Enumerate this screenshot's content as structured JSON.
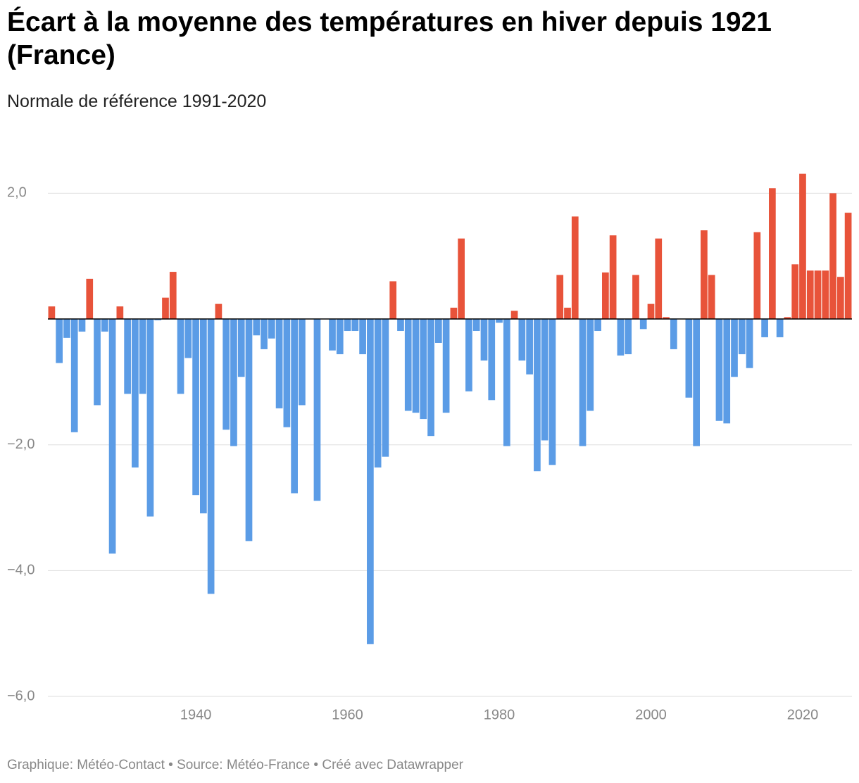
{
  "chart_data": {
    "type": "bar",
    "title": "Écart à la moyenne des températures en hiver depuis 1921 (France)",
    "subtitle": "Normale de référence 1991-2020",
    "source": "Graphique: Météo-Contact • Source: Météo-France • Créé avec Datawrapper",
    "x": [
      1921,
      1922,
      1923,
      1924,
      1925,
      1926,
      1927,
      1928,
      1929,
      1930,
      1931,
      1932,
      1933,
      1934,
      1935,
      1936,
      1937,
      1938,
      1939,
      1940,
      1941,
      1942,
      1943,
      1944,
      1945,
      1946,
      1947,
      1948,
      1949,
      1950,
      1951,
      1952,
      1953,
      1954,
      1955,
      1956,
      1957,
      1958,
      1959,
      1960,
      1961,
      1962,
      1963,
      1964,
      1965,
      1966,
      1967,
      1968,
      1969,
      1970,
      1971,
      1972,
      1973,
      1974,
      1975,
      1976,
      1977,
      1978,
      1979,
      1980,
      1981,
      1982,
      1983,
      1984,
      1985,
      1986,
      1987,
      1988,
      1989,
      1990,
      1991,
      1992,
      1993,
      1994,
      1995,
      1996,
      1997,
      1998,
      1999,
      2000,
      2001,
      2002,
      2003,
      2004,
      2005,
      2006,
      2007,
      2008,
      2009,
      2010,
      2011,
      2012,
      2013,
      2014,
      2015,
      2016,
      2017,
      2018,
      2019,
      2020,
      2021,
      2022,
      2023,
      2024,
      2025,
      2026
    ],
    "values": [
      0.2,
      -0.7,
      -0.3,
      -1.8,
      -0.2,
      0.64,
      -1.37,
      -0.2,
      -3.73,
      0.2,
      -1.19,
      -2.36,
      -1.19,
      -3.14,
      -0.02,
      0.34,
      0.75,
      -1.19,
      -0.62,
      -2.8,
      -3.09,
      -4.37,
      0.24,
      -1.76,
      -2.02,
      -0.92,
      -3.53,
      -0.26,
      -0.48,
      -0.31,
      -1.42,
      -1.72,
      -2.77,
      -1.37,
      0,
      -2.89,
      0,
      -0.5,
      -0.56,
      -0.19,
      -0.19,
      -0.56,
      -5.17,
      -2.36,
      -2.19,
      0.6,
      -0.19,
      -1.46,
      -1.49,
      -1.59,
      -1.86,
      -0.38,
      -1.49,
      0.18,
      1.28,
      -1.15,
      -0.19,
      -0.66,
      -1.29,
      -0.06,
      -2.02,
      0.13,
      -0.66,
      -0.88,
      -2.42,
      -1.93,
      -2.32,
      0.7,
      0.18,
      1.63,
      -2.02,
      -1.46,
      -0.19,
      0.74,
      1.33,
      -0.58,
      -0.56,
      0.7,
      -0.16,
      0.24,
      1.28,
      0.03,
      -0.48,
      0,
      -1.25,
      -2.02,
      1.41,
      0.7,
      -1.62,
      -1.66,
      -0.92,
      -0.56,
      -0.78,
      1.38,
      -0.29,
      2.08,
      -0.29,
      0.03,
      0.87,
      2.31,
      0.77,
      0.77,
      0.77,
      2.0,
      0.67,
      1.69
    ],
    "positive_color": "#e8533a",
    "negative_color": "#5b9ce6",
    "xlim": [
      1920.5,
      2026.5
    ],
    "xticks": [
      1940,
      1960,
      1980,
      2000,
      2020
    ],
    "ylim": [
      -6,
      2.3
    ],
    "yticks": [
      {
        "value": 2,
        "label": "2,0"
      },
      {
        "value": -2,
        "label": "−2,0"
      },
      {
        "value": -4,
        "label": "−4,0"
      },
      {
        "value": -6,
        "label": "−6,0"
      }
    ],
    "grid": true
  }
}
